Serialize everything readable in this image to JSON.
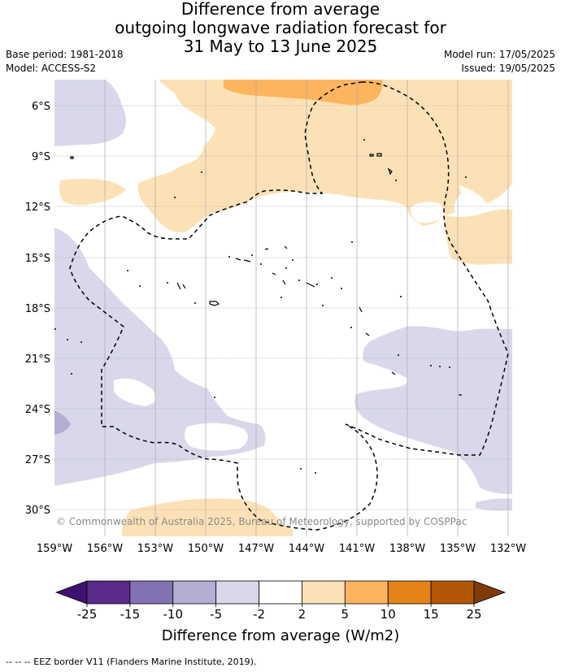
{
  "title": {
    "line1": "Difference from average",
    "line2": "outgoing longwave radiation forecast for",
    "line3": "31 May to 13 June 2025"
  },
  "meta": {
    "base_period": "Base period: 1981-2018",
    "model": "Model: ACCESS-S2",
    "model_run": "Model run: 17/05/2025",
    "issued": "Issued: 19/05/2025"
  },
  "credit": "© Commonwealth of Australia 2025, Bureau of Meteorology, supported by COSPPac",
  "footnote": "-- -- -- EEZ border V11 (Flanders Marine Institute, 2019).",
  "map_data": {
    "lat_labels": [
      "6°S",
      "9°S",
      "12°S",
      "15°S",
      "18°S",
      "21°S",
      "24°S",
      "27°S",
      "30°S"
    ],
    "lon_labels": [
      "159°W",
      "156°W",
      "153°W",
      "150°W",
      "147°W",
      "144°W",
      "141°W",
      "138°W",
      "135°W",
      "132°W"
    ],
    "colorbar": {
      "title": "Difference from average (W/m2)",
      "ticks": [
        "-25",
        "-15",
        "-10",
        "-5",
        "-2",
        "2",
        "5",
        "10",
        "15",
        "25"
      ],
      "colors": [
        "#3f0f72",
        "#5b2a8c",
        "#8272b2",
        "#b3aed3",
        "#d8d8ea",
        "#ffffff",
        "#fde1b6",
        "#fdb45e",
        "#e48218",
        "#b45608",
        "#7f3b08"
      ]
    }
  }
}
